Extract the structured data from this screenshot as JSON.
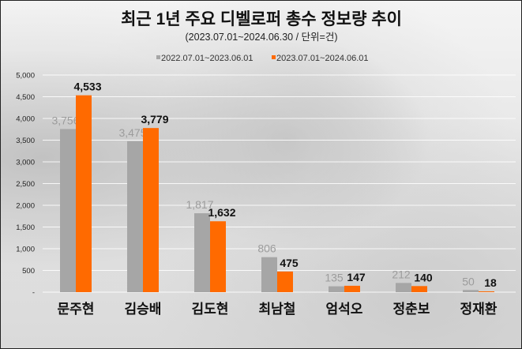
{
  "chart_data": {
    "type": "bar",
    "title": "최근 1년 주요 디벨로퍼 총수 정보량 추이",
    "subtitle": "(2023.07.01~2024.06.30 / 단위=건)",
    "categories": [
      "문주현",
      "김승배",
      "김도현",
      "최남철",
      "엄석오",
      "정춘보",
      "정재환"
    ],
    "series": [
      {
        "name": "2022.07.01~2023.06.01",
        "color": "#a6a6a6",
        "values": [
          3756,
          3475,
          1817,
          806,
          135,
          212,
          50
        ]
      },
      {
        "name": "2023.07.01~2024.06.01",
        "color": "#ff6a00",
        "values": [
          4533,
          3779,
          1632,
          475,
          147,
          140,
          18
        ]
      }
    ],
    "yticks": [
      "-",
      "500",
      "1,000",
      "1,500",
      "2,000",
      "2,500",
      "3,000",
      "3,500",
      "4,000",
      "4,500",
      "5,000"
    ],
    "ylim": [
      0,
      5000
    ],
    "grid": true,
    "legend": "top-center"
  }
}
